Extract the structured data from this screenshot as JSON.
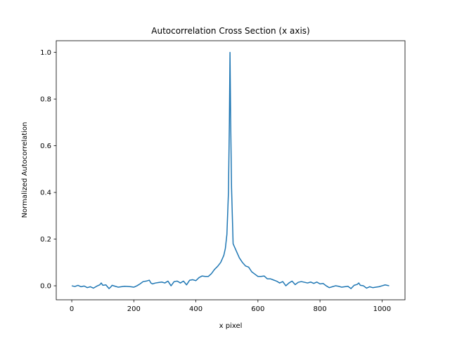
{
  "chart_data": {
    "type": "line",
    "title": "Autocorrelation Cross Section (x axis)",
    "xlabel": "x pixel",
    "ylabel": "Normalized Autocorrelation",
    "xlim": [
      -50,
      1074
    ],
    "ylim": [
      -0.06,
      1.05
    ],
    "xticks": [
      0,
      200,
      400,
      600,
      800,
      1000
    ],
    "yticks": [
      0.0,
      0.2,
      0.4,
      0.6,
      0.8,
      1.0
    ],
    "xtick_labels": [
      "0",
      "200",
      "400",
      "600",
      "800",
      "1000"
    ],
    "ytick_labels": [
      "0.0",
      "0.2",
      "0.4",
      "0.6",
      "0.8",
      "1.0"
    ],
    "grid": false,
    "series": [
      {
        "color": "#1f77b4",
        "x": [
          0,
          10,
          20,
          30,
          40,
          50,
          60,
          70,
          80,
          90,
          95,
          100,
          110,
          120,
          125,
          130,
          140,
          150,
          160,
          170,
          180,
          190,
          200,
          210,
          220,
          230,
          240,
          250,
          255,
          260,
          270,
          280,
          290,
          300,
          310,
          320,
          330,
          340,
          350,
          360,
          370,
          380,
          390,
          400,
          410,
          420,
          430,
          440,
          450,
          460,
          470,
          480,
          490,
          495,
          500,
          505,
          508,
          510,
          512,
          515,
          520,
          530,
          540,
          550,
          560,
          570,
          580,
          590,
          600,
          610,
          620,
          630,
          640,
          650,
          660,
          670,
          680,
          690,
          700,
          710,
          720,
          730,
          740,
          750,
          760,
          770,
          780,
          790,
          800,
          810,
          820,
          830,
          840,
          850,
          860,
          870,
          880,
          890,
          900,
          910,
          920,
          925,
          930,
          940,
          950,
          960,
          970,
          980,
          990,
          1000,
          1010,
          1023
        ],
        "y": [
          0.0,
          -0.003,
          0.002,
          -0.004,
          -0.001,
          -0.008,
          -0.004,
          -0.01,
          -0.002,
          0.004,
          0.012,
          0.002,
          0.004,
          -0.012,
          -0.006,
          0.002,
          -0.002,
          -0.006,
          -0.004,
          -0.002,
          -0.003,
          -0.004,
          -0.006,
          0.0,
          0.008,
          0.018,
          0.02,
          0.024,
          0.012,
          0.008,
          0.012,
          0.014,
          0.016,
          0.012,
          0.02,
          0.0,
          0.018,
          0.02,
          0.012,
          0.02,
          0.004,
          0.024,
          0.026,
          0.022,
          0.035,
          0.042,
          0.04,
          0.04,
          0.052,
          0.07,
          0.083,
          0.1,
          0.13,
          0.16,
          0.22,
          0.4,
          0.7,
          1.0,
          0.72,
          0.42,
          0.18,
          0.15,
          0.12,
          0.1,
          0.085,
          0.08,
          0.06,
          0.05,
          0.04,
          0.04,
          0.042,
          0.03,
          0.03,
          0.025,
          0.02,
          0.012,
          0.018,
          0.0,
          0.012,
          0.02,
          0.005,
          0.015,
          0.018,
          0.015,
          0.012,
          0.016,
          0.01,
          0.016,
          0.008,
          0.01,
          0.0,
          -0.008,
          -0.004,
          0.0,
          -0.002,
          -0.006,
          -0.004,
          -0.002,
          -0.012,
          0.002,
          0.006,
          0.012,
          0.002,
          0.0,
          -0.01,
          -0.004,
          -0.008,
          -0.006,
          -0.004,
          0.0,
          0.004,
          0.0
        ]
      }
    ]
  }
}
